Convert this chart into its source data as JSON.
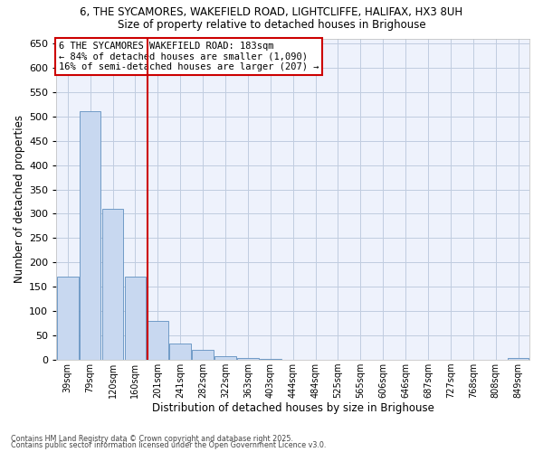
{
  "title_line1": "6, THE SYCAMORES, WAKEFIELD ROAD, LIGHTCLIFFE, HALIFAX, HX3 8UH",
  "title_line2": "Size of property relative to detached houses in Brighouse",
  "xlabel": "Distribution of detached houses by size in Brighouse",
  "ylabel": "Number of detached properties",
  "categories": [
    "39sqm",
    "79sqm",
    "120sqm",
    "160sqm",
    "201sqm",
    "241sqm",
    "282sqm",
    "322sqm",
    "363sqm",
    "403sqm",
    "444sqm",
    "484sqm",
    "525sqm",
    "565sqm",
    "606sqm",
    "646sqm",
    "687sqm",
    "727sqm",
    "768sqm",
    "808sqm",
    "849sqm"
  ],
  "values": [
    170,
    510,
    310,
    170,
    80,
    33,
    20,
    8,
    3,
    2,
    0,
    0,
    0,
    0,
    0,
    0,
    0,
    0,
    0,
    0,
    3
  ],
  "bar_color": "#c8d8f0",
  "bar_edge_color": "#6090c0",
  "vline_color": "#cc0000",
  "vline_pos": 3.55,
  "annotation_line1": "6 THE SYCAMORES WAKEFIELD ROAD: 183sqm",
  "annotation_line2": "← 84% of detached houses are smaller (1,090)",
  "annotation_line3": "16% of semi-detached houses are larger (207) →",
  "annotation_box_edgecolor": "#cc0000",
  "ylim": [
    0,
    660
  ],
  "yticks": [
    0,
    50,
    100,
    150,
    200,
    250,
    300,
    350,
    400,
    450,
    500,
    550,
    600,
    650
  ],
  "footnote1": "Contains HM Land Registry data © Crown copyright and database right 2025.",
  "footnote2": "Contains public sector information licensed under the Open Government Licence v3.0.",
  "bg_color": "#eef2fc",
  "grid_color": "#c0cce0"
}
